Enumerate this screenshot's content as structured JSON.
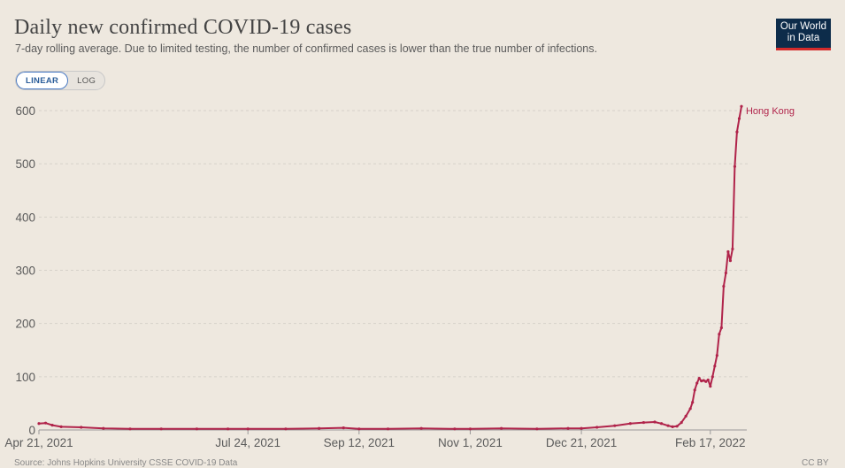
{
  "header": {
    "title": "Daily new confirmed COVID-19 cases",
    "subtitle": "7-day rolling average. Due to limited testing, the number of confirmed cases is lower than the true number of infections."
  },
  "logo": {
    "line1": "Our World",
    "line2": "in Data"
  },
  "scale_toggle": {
    "linear_label": "LINEAR",
    "log_label": "LOG",
    "selected": "LINEAR"
  },
  "footer": {
    "source": "Source: Johns Hopkins University CSSE COVID-19 Data",
    "license": "CC BY"
  },
  "colors": {
    "series": "#b0234a",
    "background": "#eee8df",
    "grid": "#d6d1ca",
    "text": "#5b5b5b"
  },
  "chart_data": {
    "type": "line",
    "title": "Daily new confirmed COVID-19 cases",
    "subtitle": "7-day rolling average. Due to limited testing, the number of confirmed cases is lower than the true number of infections.",
    "xlabel": "",
    "ylabel": "",
    "xlim": [
      "2021-04-21",
      "2022-03-05"
    ],
    "ylim": [
      0,
      600
    ],
    "yticks": [
      0,
      100,
      200,
      300,
      400,
      500,
      600
    ],
    "xtick_labels": [
      "Apr 21, 2021",
      "Jul 24, 2021",
      "Sep 12, 2021",
      "Nov 1, 2021",
      "Dec 21, 2021",
      "Feb 17, 2022"
    ],
    "xtick_dates": [
      "2021-04-21",
      "2021-07-24",
      "2021-09-12",
      "2021-11-01",
      "2021-12-21",
      "2022-02-17"
    ],
    "grid": true,
    "series": [
      {
        "name": "Hong Kong",
        "color": "#b0234a",
        "points": [
          [
            "2021-04-21",
            12
          ],
          [
            "2021-04-24",
            13
          ],
          [
            "2021-04-27",
            9
          ],
          [
            "2021-05-01",
            6
          ],
          [
            "2021-05-10",
            5
          ],
          [
            "2021-05-20",
            3
          ],
          [
            "2021-06-01",
            2
          ],
          [
            "2021-06-15",
            2
          ],
          [
            "2021-07-01",
            2
          ],
          [
            "2021-07-15",
            2
          ],
          [
            "2021-07-24",
            2
          ],
          [
            "2021-08-10",
            2
          ],
          [
            "2021-08-25",
            3
          ],
          [
            "2021-09-05",
            4
          ],
          [
            "2021-09-12",
            2
          ],
          [
            "2021-09-25",
            2
          ],
          [
            "2021-10-10",
            3
          ],
          [
            "2021-10-25",
            2
          ],
          [
            "2021-11-01",
            2
          ],
          [
            "2021-11-15",
            3
          ],
          [
            "2021-12-01",
            2
          ],
          [
            "2021-12-15",
            3
          ],
          [
            "2021-12-21",
            3
          ],
          [
            "2021-12-28",
            5
          ],
          [
            "2022-01-05",
            8
          ],
          [
            "2022-01-12",
            12
          ],
          [
            "2022-01-18",
            14
          ],
          [
            "2022-01-23",
            15
          ],
          [
            "2022-01-26",
            12
          ],
          [
            "2022-01-29",
            8
          ],
          [
            "2022-01-31",
            6
          ],
          [
            "2022-02-02",
            7
          ],
          [
            "2022-02-04",
            14
          ],
          [
            "2022-02-06",
            26
          ],
          [
            "2022-02-08",
            40
          ],
          [
            "2022-02-09",
            52
          ],
          [
            "2022-02-10",
            75
          ],
          [
            "2022-02-11",
            88
          ],
          [
            "2022-02-12",
            97
          ],
          [
            "2022-02-13",
            92
          ],
          [
            "2022-02-14",
            93
          ],
          [
            "2022-02-15",
            91
          ],
          [
            "2022-02-16",
            94
          ],
          [
            "2022-02-17",
            82
          ],
          [
            "2022-02-18",
            100
          ],
          [
            "2022-02-19",
            120
          ],
          [
            "2022-02-20",
            140
          ],
          [
            "2022-02-21",
            180
          ],
          [
            "2022-02-22",
            192
          ],
          [
            "2022-02-23",
            270
          ],
          [
            "2022-02-24",
            295
          ],
          [
            "2022-02-25",
            335
          ],
          [
            "2022-02-26",
            318
          ],
          [
            "2022-02-27",
            340
          ],
          [
            "2022-02-28",
            495
          ],
          [
            "2022-03-01",
            560
          ],
          [
            "2022-03-02",
            585
          ],
          [
            "2022-03-03",
            608
          ]
        ]
      }
    ]
  }
}
